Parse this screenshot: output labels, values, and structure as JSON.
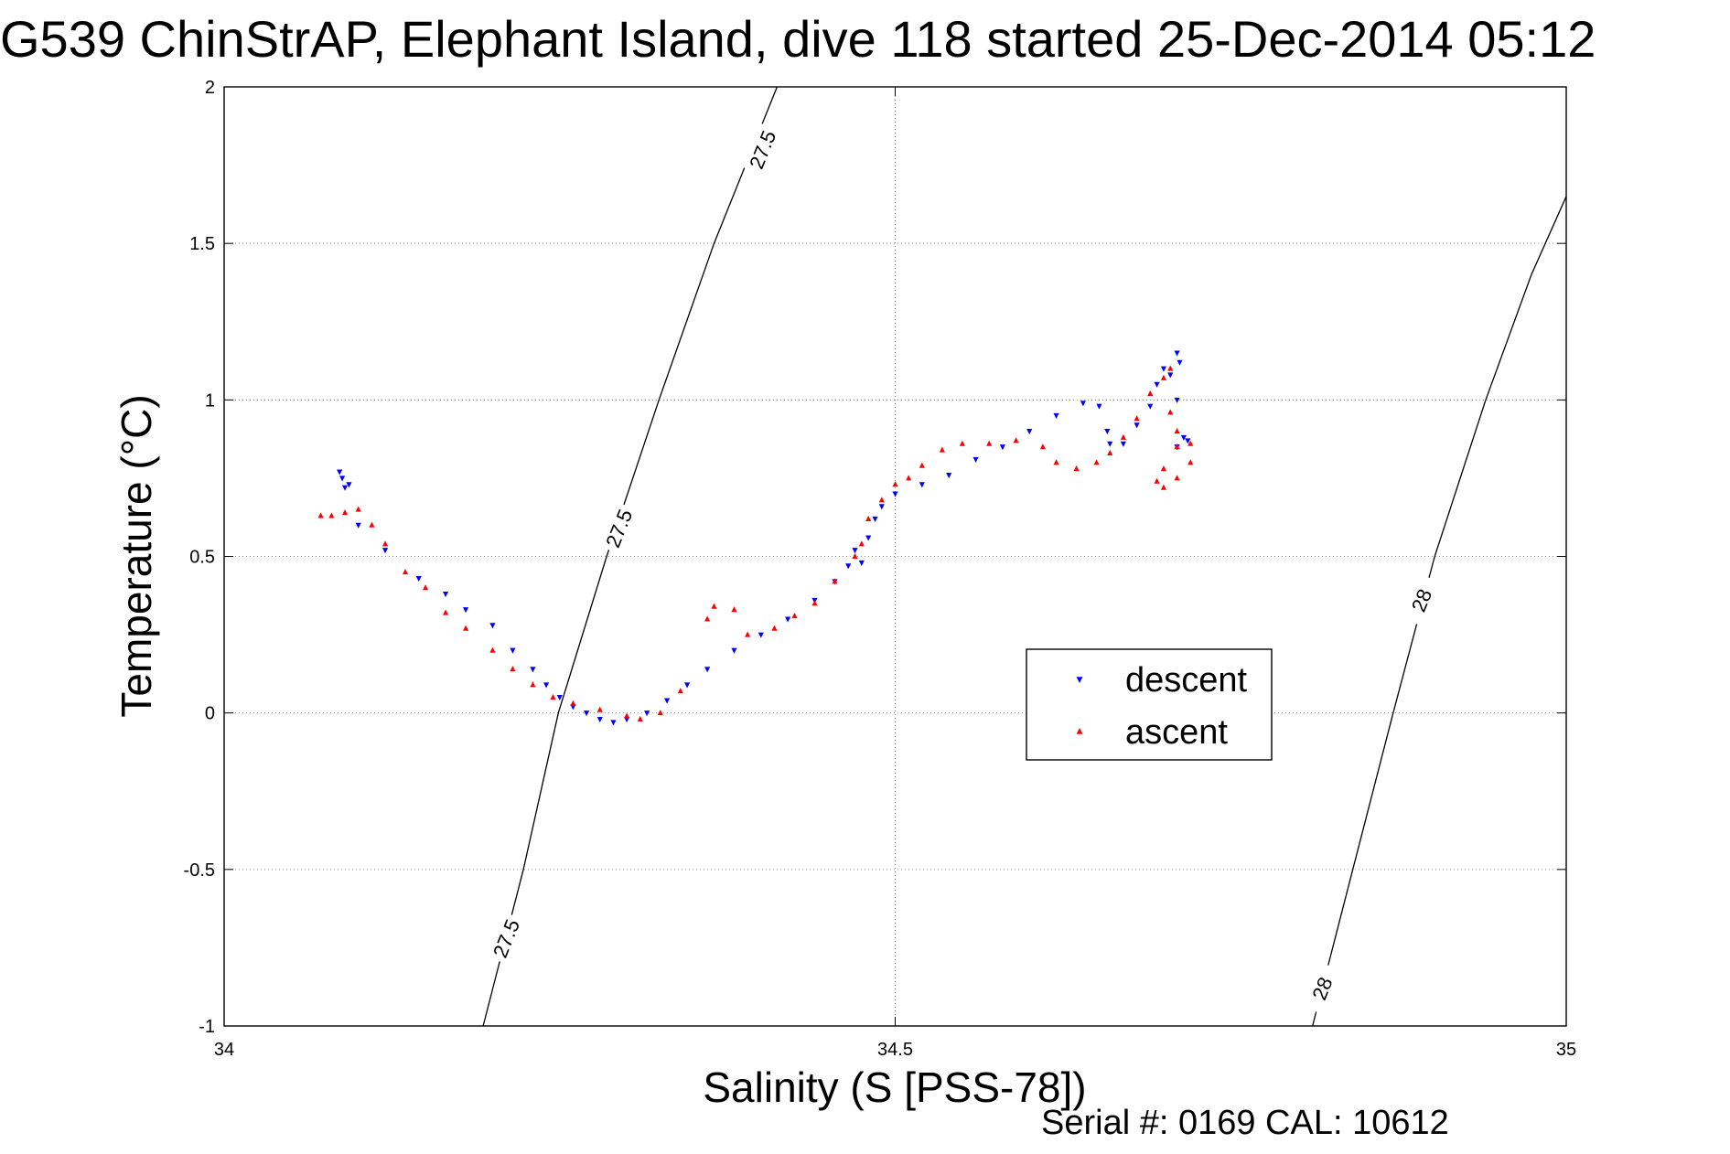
{
  "chart_data": {
    "type": "scatter",
    "title": "G539 ChinStrAP, Elephant Island, dive 118 started 25-Dec-2014 05:12",
    "xlabel": "Salinity (S [PSS-78])",
    "ylabel": "Temperature (°C)",
    "xlim": [
      34,
      35
    ],
    "ylim": [
      -1,
      2
    ],
    "xticks": [
      "34",
      "34.5",
      "35"
    ],
    "yticks": [
      "-1",
      "-0.5",
      "0",
      "0.5",
      "1",
      "1.5",
      "2"
    ],
    "xtick_values": [
      34,
      34.5,
      35
    ],
    "ytick_values": [
      -1,
      -0.5,
      0,
      0.5,
      1,
      1.5,
      2
    ],
    "grid": true,
    "legend_position": "right",
    "footer": "Serial #: 0169 CAL: 10612",
    "contours": [
      {
        "label": "27.5",
        "points": [
          [
            34.193,
            -1.0
          ],
          [
            34.223,
            -0.5
          ],
          [
            34.249,
            0.0
          ],
          [
            34.285,
            0.5
          ],
          [
            34.324,
            1.0
          ],
          [
            34.365,
            1.5
          ],
          [
            34.412,
            2.0
          ]
        ]
      },
      {
        "label": "28",
        "points": [
          [
            34.811,
            -1.0
          ],
          [
            34.841,
            -0.5
          ],
          [
            34.871,
            0.0
          ],
          [
            34.902,
            0.5
          ],
          [
            34.94,
            1.0
          ],
          [
            34.974,
            1.4
          ],
          [
            35.0,
            1.65
          ]
        ]
      }
    ],
    "contour_labels": [
      {
        "text": "27.5",
        "x": 34.401,
        "y": 1.8
      },
      {
        "text": "27.5",
        "x": 34.294,
        "y": 0.59
      },
      {
        "text": "27.5",
        "x": 34.21,
        "y": -0.72
      },
      {
        "text": "28",
        "x": 34.892,
        "y": 0.36
      },
      {
        "text": "28",
        "x": 34.818,
        "y": -0.88
      }
    ],
    "series": [
      {
        "name": "descent",
        "color": "#0000ff",
        "marker": "triangle-down",
        "points": [
          [
            34.086,
            0.77
          ],
          [
            34.088,
            0.75
          ],
          [
            34.09,
            0.72
          ],
          [
            34.093,
            0.73
          ],
          [
            34.1,
            0.6
          ],
          [
            34.12,
            0.52
          ],
          [
            34.145,
            0.43
          ],
          [
            34.165,
            0.38
          ],
          [
            34.18,
            0.33
          ],
          [
            34.2,
            0.28
          ],
          [
            34.215,
            0.2
          ],
          [
            34.23,
            0.14
          ],
          [
            34.24,
            0.09
          ],
          [
            34.25,
            0.05
          ],
          [
            34.26,
            0.02
          ],
          [
            34.27,
            0.0
          ],
          [
            34.28,
            -0.02
          ],
          [
            34.29,
            -0.03
          ],
          [
            34.3,
            -0.02
          ],
          [
            34.315,
            0.0
          ],
          [
            34.33,
            0.04
          ],
          [
            34.345,
            0.09
          ],
          [
            34.36,
            0.14
          ],
          [
            34.38,
            0.2
          ],
          [
            34.4,
            0.25
          ],
          [
            34.42,
            0.3
          ],
          [
            34.44,
            0.36
          ],
          [
            34.455,
            0.42
          ],
          [
            34.465,
            0.47
          ],
          [
            34.47,
            0.52
          ],
          [
            34.475,
            0.48
          ],
          [
            34.48,
            0.56
          ],
          [
            34.485,
            0.62
          ],
          [
            34.49,
            0.66
          ],
          [
            34.5,
            0.7
          ],
          [
            34.52,
            0.73
          ],
          [
            34.54,
            0.76
          ],
          [
            34.56,
            0.81
          ],
          [
            34.58,
            0.85
          ],
          [
            34.6,
            0.9
          ],
          [
            34.62,
            0.95
          ],
          [
            34.64,
            0.99
          ],
          [
            34.652,
            0.98
          ],
          [
            34.658,
            0.9
          ],
          [
            34.66,
            0.86
          ],
          [
            34.67,
            0.86
          ],
          [
            34.68,
            0.92
          ],
          [
            34.69,
            0.98
          ],
          [
            34.695,
            1.05
          ],
          [
            34.7,
            1.1
          ],
          [
            34.705,
            1.08
          ],
          [
            34.71,
            1.15
          ],
          [
            34.712,
            1.12
          ],
          [
            34.71,
            1.0
          ],
          [
            34.71,
            0.85
          ],
          [
            34.715,
            0.88
          ],
          [
            34.718,
            0.87
          ]
        ]
      },
      {
        "name": "ascent",
        "color": "#ff0000",
        "marker": "triangle-up",
        "points": [
          [
            34.072,
            0.63
          ],
          [
            34.08,
            0.63
          ],
          [
            34.09,
            0.64
          ],
          [
            34.1,
            0.65
          ],
          [
            34.11,
            0.6
          ],
          [
            34.12,
            0.54
          ],
          [
            34.135,
            0.45
          ],
          [
            34.15,
            0.4
          ],
          [
            34.165,
            0.32
          ],
          [
            34.18,
            0.27
          ],
          [
            34.2,
            0.2
          ],
          [
            34.215,
            0.14
          ],
          [
            34.23,
            0.09
          ],
          [
            34.245,
            0.05
          ],
          [
            34.26,
            0.03
          ],
          [
            34.28,
            0.01
          ],
          [
            34.3,
            -0.01
          ],
          [
            34.31,
            -0.02
          ],
          [
            34.325,
            0.0
          ],
          [
            34.34,
            0.07
          ],
          [
            34.36,
            0.3
          ],
          [
            34.365,
            0.34
          ],
          [
            34.38,
            0.33
          ],
          [
            34.39,
            0.25
          ],
          [
            34.41,
            0.27
          ],
          [
            34.425,
            0.31
          ],
          [
            34.44,
            0.35
          ],
          [
            34.455,
            0.42
          ],
          [
            34.47,
            0.5
          ],
          [
            34.475,
            0.54
          ],
          [
            34.48,
            0.62
          ],
          [
            34.49,
            0.68
          ],
          [
            34.5,
            0.73
          ],
          [
            34.51,
            0.75
          ],
          [
            34.52,
            0.79
          ],
          [
            34.535,
            0.84
          ],
          [
            34.55,
            0.86
          ],
          [
            34.57,
            0.86
          ],
          [
            34.59,
            0.87
          ],
          [
            34.61,
            0.85
          ],
          [
            34.62,
            0.8
          ],
          [
            34.635,
            0.78
          ],
          [
            34.65,
            0.8
          ],
          [
            34.66,
            0.83
          ],
          [
            34.67,
            0.88
          ],
          [
            34.68,
            0.94
          ],
          [
            34.69,
            1.02
          ],
          [
            34.7,
            1.07
          ],
          [
            34.705,
            1.1
          ],
          [
            34.705,
            0.96
          ],
          [
            34.71,
            0.9
          ],
          [
            34.71,
            0.85
          ],
          [
            34.7,
            0.78
          ],
          [
            34.695,
            0.74
          ],
          [
            34.7,
            0.72
          ],
          [
            34.71,
            0.75
          ],
          [
            34.72,
            0.8
          ],
          [
            34.72,
            0.86
          ]
        ]
      }
    ]
  }
}
